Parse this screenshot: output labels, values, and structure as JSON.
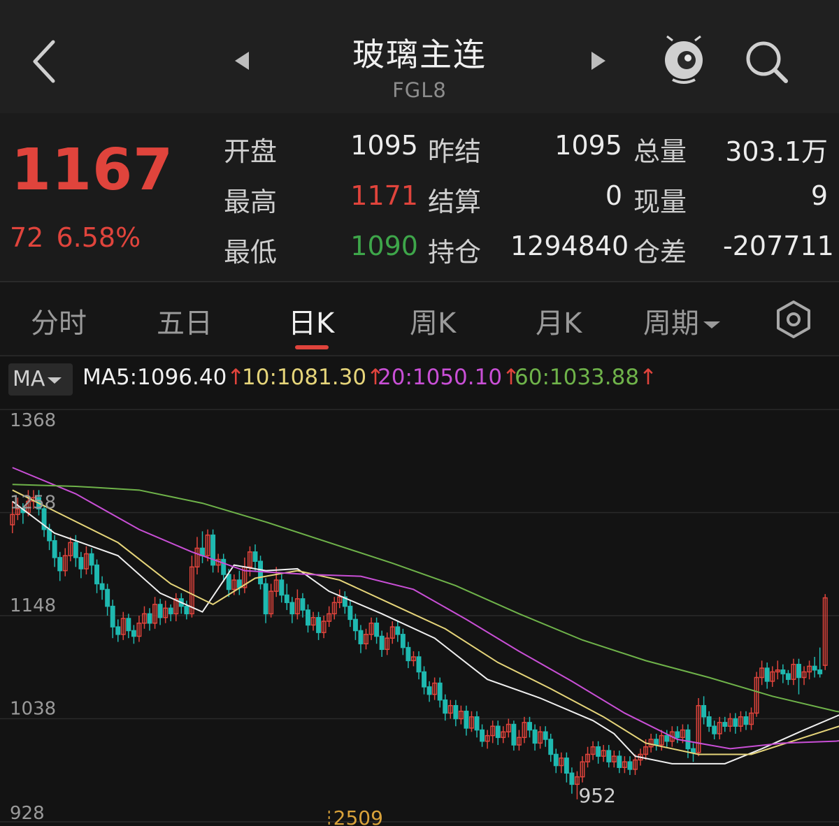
{
  "header": {
    "title": "玻璃主连",
    "code": "FGL8",
    "icons": [
      "back-chevron-icon",
      "prev-arrow-icon",
      "next-arrow-icon",
      "robot-assistant-icon",
      "search-icon"
    ]
  },
  "quote": {
    "price": "1167",
    "change": "72",
    "change_pct": "6.58%",
    "fields": [
      [
        {
          "label": "开盘",
          "value": "1095",
          "color": "normal"
        },
        {
          "label": "昨结",
          "value": "1095",
          "color": "normal"
        },
        {
          "label": "总量",
          "value": "303.1万",
          "color": "normal"
        }
      ],
      [
        {
          "label": "最高",
          "value": "1171",
          "color": "red"
        },
        {
          "label": "结算",
          "value": "0",
          "color": "normal"
        },
        {
          "label": "现量",
          "value": "9",
          "color": "normal"
        }
      ],
      [
        {
          "label": "最低",
          "value": "1090",
          "color": "green"
        },
        {
          "label": "持仓",
          "value": "1294840",
          "color": "normal"
        },
        {
          "label": "仓差",
          "value": "-207711",
          "color": "normal"
        }
      ]
    ]
  },
  "tabs": [
    {
      "label": "分时",
      "active": false
    },
    {
      "label": "五日",
      "active": false
    },
    {
      "label": "日K",
      "active": true
    },
    {
      "label": "周K",
      "active": false
    },
    {
      "label": "月K",
      "active": false
    },
    {
      "label": "周期",
      "active": false
    }
  ],
  "ma_bar": {
    "button": "MA",
    "items": [
      {
        "label": "MA5:",
        "value": "1096.40",
        "arrow": "↑",
        "color": "#f0f0f0"
      },
      {
        "label": "10:",
        "value": "1081.30",
        "arrow": "↑",
        "color": "#e6d57a"
      },
      {
        "label": "20:",
        "value": "1050.10",
        "arrow": "↑",
        "color": "#c94fd6"
      },
      {
        "label": "60:",
        "value": "1033.88",
        "arrow": "↑",
        "color": "#6fb34a"
      }
    ]
  },
  "colors": {
    "up": "#e0443c",
    "down": "#1fb9b0",
    "ma5": "#f0f0f0",
    "ma10": "#e6d57a",
    "ma20": "#c94fd6",
    "ma60": "#6fb34a"
  },
  "chart_data": {
    "type": "candlestick",
    "y_ticks": [
      "1368",
      "1258",
      "1148",
      "1038",
      "928"
    ],
    "ylim": [
      928,
      1368
    ],
    "low_marker": "952",
    "period_marker": "2509",
    "candles": [
      [
        1245,
        1256,
        1270,
        1236
      ],
      [
        1256,
        1262,
        1274,
        1250
      ],
      [
        1262,
        1258,
        1268,
        1246
      ],
      [
        1258,
        1270,
        1282,
        1254
      ],
      [
        1270,
        1274,
        1282,
        1262
      ],
      [
        1274,
        1262,
        1282,
        1255
      ],
      [
        1262,
        1240,
        1266,
        1232
      ],
      [
        1240,
        1228,
        1246,
        1218
      ],
      [
        1228,
        1210,
        1234,
        1200
      ],
      [
        1210,
        1196,
        1216,
        1185
      ],
      [
        1196,
        1212,
        1220,
        1190
      ],
      [
        1212,
        1226,
        1232,
        1206
      ],
      [
        1226,
        1210,
        1234,
        1200
      ],
      [
        1210,
        1198,
        1216,
        1188
      ],
      [
        1198,
        1214,
        1222,
        1192
      ],
      [
        1214,
        1202,
        1220,
        1192
      ],
      [
        1202,
        1182,
        1208,
        1172
      ],
      [
        1182,
        1176,
        1190,
        1165
      ],
      [
        1176,
        1158,
        1182,
        1148
      ],
      [
        1158,
        1136,
        1165,
        1124
      ],
      [
        1136,
        1128,
        1144,
        1120
      ],
      [
        1128,
        1145,
        1152,
        1122
      ],
      [
        1145,
        1132,
        1150,
        1124
      ],
      [
        1132,
        1126,
        1138,
        1118
      ],
      [
        1126,
        1140,
        1148,
        1120
      ],
      [
        1140,
        1150,
        1158,
        1134
      ],
      [
        1150,
        1140,
        1156,
        1132
      ],
      [
        1140,
        1160,
        1168,
        1134
      ],
      [
        1160,
        1146,
        1166,
        1138
      ],
      [
        1146,
        1156,
        1164,
        1140
      ],
      [
        1156,
        1150,
        1160,
        1142
      ],
      [
        1150,
        1166,
        1172,
        1142
      ],
      [
        1166,
        1158,
        1172,
        1150
      ],
      [
        1158,
        1150,
        1164,
        1144
      ],
      [
        1150,
        1200,
        1212,
        1146
      ],
      [
        1200,
        1220,
        1232,
        1192
      ],
      [
        1220,
        1212,
        1238,
        1204
      ],
      [
        1212,
        1234,
        1240,
        1206
      ],
      [
        1234,
        1202,
        1240,
        1194
      ],
      [
        1202,
        1208,
        1214,
        1194
      ],
      [
        1208,
        1192,
        1214,
        1184
      ],
      [
        1192,
        1176,
        1198,
        1168
      ],
      [
        1176,
        1186,
        1192,
        1170
      ],
      [
        1186,
        1178,
        1196,
        1170
      ],
      [
        1178,
        1200,
        1210,
        1172
      ],
      [
        1200,
        1216,
        1222,
        1190
      ],
      [
        1216,
        1206,
        1224,
        1196
      ],
      [
        1206,
        1182,
        1212,
        1176
      ],
      [
        1182,
        1150,
        1188,
        1140
      ],
      [
        1150,
        1174,
        1182,
        1146
      ],
      [
        1174,
        1186,
        1200,
        1168
      ],
      [
        1186,
        1170,
        1192,
        1162
      ],
      [
        1170,
        1162,
        1182,
        1154
      ],
      [
        1162,
        1150,
        1168,
        1140
      ],
      [
        1150,
        1166,
        1176,
        1144
      ],
      [
        1166,
        1154,
        1172,
        1146
      ],
      [
        1154,
        1138,
        1160,
        1130
      ],
      [
        1138,
        1146,
        1152,
        1132
      ],
      [
        1146,
        1130,
        1152,
        1122
      ],
      [
        1130,
        1142,
        1148,
        1124
      ],
      [
        1142,
        1150,
        1158,
        1136
      ],
      [
        1150,
        1162,
        1168,
        1144
      ],
      [
        1162,
        1168,
        1176,
        1156
      ],
      [
        1168,
        1158,
        1174,
        1150
      ],
      [
        1158,
        1144,
        1164,
        1136
      ],
      [
        1144,
        1132,
        1150,
        1122
      ],
      [
        1132,
        1118,
        1138,
        1108
      ],
      [
        1118,
        1128,
        1134,
        1112
      ],
      [
        1128,
        1140,
        1146,
        1122
      ],
      [
        1140,
        1126,
        1146,
        1118
      ],
      [
        1126,
        1112,
        1132,
        1104
      ],
      [
        1112,
        1124,
        1130,
        1106
      ],
      [
        1124,
        1136,
        1142,
        1118
      ],
      [
        1136,
        1128,
        1142,
        1120
      ],
      [
        1128,
        1114,
        1134,
        1106
      ],
      [
        1114,
        1100,
        1120,
        1092
      ],
      [
        1100,
        1104,
        1110,
        1094
      ],
      [
        1104,
        1088,
        1110,
        1080
      ],
      [
        1088,
        1072,
        1094,
        1064
      ],
      [
        1072,
        1064,
        1078,
        1056
      ],
      [
        1064,
        1076,
        1082,
        1058
      ],
      [
        1076,
        1058,
        1082,
        1050
      ],
      [
        1058,
        1044,
        1064,
        1036
      ],
      [
        1044,
        1052,
        1058,
        1038
      ],
      [
        1052,
        1038,
        1058,
        1030
      ],
      [
        1038,
        1046,
        1052,
        1032
      ],
      [
        1046,
        1028,
        1052,
        1020
      ],
      [
        1028,
        1040,
        1046,
        1024
      ],
      [
        1040,
        1026,
        1046,
        1018
      ],
      [
        1026,
        1014,
        1032,
        1008
      ],
      [
        1014,
        1020,
        1026,
        1006
      ],
      [
        1020,
        1030,
        1036,
        1012
      ],
      [
        1030,
        1018,
        1036,
        1010
      ],
      [
        1018,
        1024,
        1030,
        1012
      ],
      [
        1024,
        1032,
        1038,
        1018
      ],
      [
        1032,
        1010,
        1036,
        1004
      ],
      [
        1010,
        1018,
        1026,
        1004
      ],
      [
        1018,
        1034,
        1040,
        1012
      ],
      [
        1034,
        1026,
        1040,
        1018
      ],
      [
        1026,
        1012,
        1032,
        1004
      ],
      [
        1012,
        1024,
        1030,
        1006
      ],
      [
        1024,
        1016,
        1030,
        1008
      ],
      [
        1016,
        1000,
        1022,
        992
      ],
      [
        1000,
        988,
        1006,
        980
      ],
      [
        988,
        996,
        1002,
        980
      ],
      [
        996,
        980,
        1002,
        970
      ],
      [
        980,
        968,
        986,
        958
      ],
      [
        968,
        976,
        982,
        952
      ],
      [
        976,
        992,
        998,
        970
      ],
      [
        992,
        1000,
        1008,
        986
      ],
      [
        1000,
        1008,
        1014,
        994
      ],
      [
        1008,
        998,
        1014,
        990
      ],
      [
        998,
        1004,
        1010,
        992
      ],
      [
        1004,
        992,
        1010,
        986
      ],
      [
        992,
        998,
        1004,
        986
      ],
      [
        998,
        986,
        1004,
        980
      ],
      [
        986,
        992,
        998,
        980
      ],
      [
        992,
        984,
        998,
        978
      ],
      [
        984,
        994,
        1000,
        978
      ],
      [
        994,
        1000,
        1006,
        988
      ],
      [
        1000,
        1008,
        1016,
        994
      ],
      [
        1008,
        1016,
        1022,
        1002
      ],
      [
        1016,
        1010,
        1022,
        1004
      ],
      [
        1010,
        1020,
        1026,
        1004
      ],
      [
        1020,
        1014,
        1026,
        1008
      ],
      [
        1014,
        1024,
        1030,
        1008
      ],
      [
        1024,
        1018,
        1030,
        1012
      ],
      [
        1018,
        1026,
        1032,
        1012
      ],
      [
        1026,
        1006,
        1032,
        996
      ],
      [
        1006,
        1002,
        1012,
        992
      ],
      [
        1002,
        1052,
        1060,
        998
      ],
      [
        1052,
        1040,
        1062,
        1032
      ],
      [
        1040,
        1030,
        1046,
        1024
      ],
      [
        1030,
        1022,
        1036,
        1016
      ],
      [
        1022,
        1034,
        1040,
        1016
      ],
      [
        1034,
        1030,
        1040,
        1024
      ],
      [
        1030,
        1038,
        1044,
        1024
      ],
      [
        1038,
        1030,
        1044,
        1022
      ],
      [
        1030,
        1040,
        1046,
        1024
      ],
      [
        1040,
        1032,
        1046,
        1026
      ],
      [
        1032,
        1044,
        1050,
        1026
      ],
      [
        1044,
        1082,
        1088,
        1040
      ],
      [
        1082,
        1092,
        1100,
        1074
      ],
      [
        1092,
        1078,
        1098,
        1070
      ],
      [
        1078,
        1088,
        1094,
        1072
      ],
      [
        1088,
        1090,
        1100,
        1080
      ],
      [
        1090,
        1086,
        1096,
        1076
      ],
      [
        1086,
        1080,
        1090,
        1074
      ],
      [
        1080,
        1096,
        1102,
        1074
      ],
      [
        1096,
        1082,
        1102,
        1064
      ],
      [
        1082,
        1088,
        1094,
        1074
      ],
      [
        1088,
        1094,
        1100,
        1080
      ],
      [
        1094,
        1090,
        1104,
        1082
      ],
      [
        1090,
        1086,
        1114,
        1082
      ],
      [
        1095,
        1167,
        1171,
        1090
      ]
    ],
    "series": [
      {
        "name": "MA5",
        "points": [
          [
            0,
            1270
          ],
          [
            8,
            1236
          ],
          [
            20,
            1212
          ],
          [
            28,
            1172
          ],
          [
            36,
            1152
          ],
          [
            42,
            1202
          ],
          [
            48,
            1196
          ],
          [
            54,
            1198
          ],
          [
            60,
            1174
          ],
          [
            70,
            1150
          ],
          [
            80,
            1124
          ],
          [
            90,
            1080
          ],
          [
            100,
            1060
          ],
          [
            110,
            1036
          ],
          [
            114,
            1022
          ],
          [
            118,
            998
          ],
          [
            125,
            990
          ],
          [
            135,
            990
          ],
          [
            142,
            1006
          ],
          [
            150,
            1026
          ],
          [
            160,
            1050
          ],
          [
            166,
            1074
          ],
          [
            172,
            1086
          ],
          [
            178,
            1094
          ],
          [
            184,
            1096
          ]
        ]
      },
      {
        "name": "MA10",
        "points": [
          [
            0,
            1282
          ],
          [
            10,
            1254
          ],
          [
            20,
            1226
          ],
          [
            30,
            1182
          ],
          [
            38,
            1160
          ],
          [
            46,
            1188
          ],
          [
            54,
            1196
          ],
          [
            62,
            1186
          ],
          [
            72,
            1160
          ],
          [
            82,
            1134
          ],
          [
            92,
            1098
          ],
          [
            102,
            1070
          ],
          [
            112,
            1040
          ],
          [
            120,
            1012
          ],
          [
            130,
            1000
          ],
          [
            140,
            1000
          ],
          [
            150,
            1018
          ],
          [
            160,
            1036
          ],
          [
            168,
            1054
          ],
          [
            176,
            1070
          ],
          [
            184,
            1081
          ]
        ]
      },
      {
        "name": "MA20",
        "points": [
          [
            0,
            1306
          ],
          [
            12,
            1278
          ],
          [
            24,
            1240
          ],
          [
            34,
            1216
          ],
          [
            44,
            1196
          ],
          [
            56,
            1192
          ],
          [
            66,
            1190
          ],
          [
            76,
            1176
          ],
          [
            86,
            1144
          ],
          [
            96,
            1110
          ],
          [
            106,
            1078
          ],
          [
            116,
            1044
          ],
          [
            126,
            1016
          ],
          [
            136,
            1006
          ],
          [
            146,
            1012
          ],
          [
            156,
            1014
          ],
          [
            164,
            1020
          ],
          [
            172,
            1030
          ],
          [
            180,
            1042
          ],
          [
            184,
            1050
          ]
        ]
      },
      {
        "name": "MA60",
        "points": [
          [
            0,
            1288
          ],
          [
            12,
            1286
          ],
          [
            24,
            1282
          ],
          [
            36,
            1268
          ],
          [
            48,
            1248
          ],
          [
            60,
            1226
          ],
          [
            72,
            1204
          ],
          [
            84,
            1180
          ],
          [
            96,
            1150
          ],
          [
            108,
            1122
          ],
          [
            120,
            1100
          ],
          [
            132,
            1082
          ],
          [
            144,
            1062
          ],
          [
            156,
            1046
          ],
          [
            166,
            1038
          ],
          [
            176,
            1032
          ],
          [
            184,
            1034
          ]
        ]
      }
    ]
  }
}
